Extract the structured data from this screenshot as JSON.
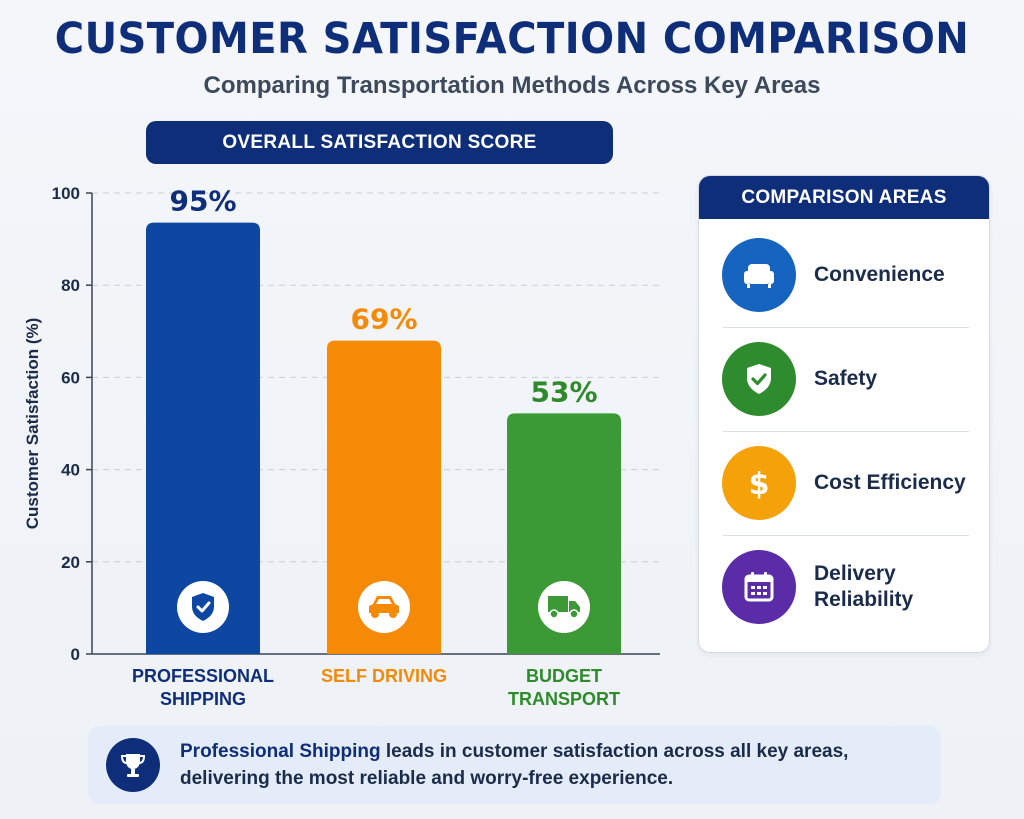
{
  "header": {
    "title": "CUSTOMER SATISFACTION COMPARISON",
    "subtitle": "Comparing Transportation Methods Across Key Areas"
  },
  "chart_data": {
    "type": "bar",
    "title": "OVERALL SATISFACTION SCORE",
    "ylabel": "Customer Satisfaction (%)",
    "xlabel": "",
    "ylim": [
      0,
      100
    ],
    "yticks": [
      0,
      20,
      40,
      60,
      80,
      100
    ],
    "grid": true,
    "categories": [
      "PROFESSIONAL SHIPPING",
      "SELF DRIVING",
      "BUDGET TRANSPORT"
    ],
    "category_lines": [
      [
        "PROFESSIONAL",
        "SHIPPING"
      ],
      [
        "SELF DRIVING"
      ],
      [
        "BUDGET",
        "TRANSPORT"
      ]
    ],
    "values": [
      95,
      69,
      53
    ],
    "data_labels": [
      "95%",
      "69%",
      "53%"
    ],
    "bar_icons": [
      "shield-check-icon",
      "car-icon",
      "truck-icon"
    ],
    "colors": [
      "#0d47a1",
      "#f58a07",
      "#3b9a35"
    ],
    "label_colors": [
      "#0f2e7a",
      "#f58a07",
      "#2e8a2a"
    ]
  },
  "comparison_panel": {
    "title": "COMPARISON AREAS",
    "items": [
      {
        "label": "Convenience",
        "icon": "armchair-icon",
        "color": "#1565c0"
      },
      {
        "label": "Safety",
        "icon": "shield-check-icon",
        "color": "#2e8b2e"
      },
      {
        "label": "Cost Efficiency",
        "icon": "dollar-icon",
        "color": "#f5a10a"
      },
      {
        "label": "Delivery Reliability",
        "icon": "calendar-icon",
        "color": "#5a2ca8"
      }
    ]
  },
  "footer": {
    "highlight": "Professional Shipping",
    "text_1": " leads in customer satisfaction across all key areas,",
    "text_2": "delivering the most reliable and worry-free experience."
  }
}
